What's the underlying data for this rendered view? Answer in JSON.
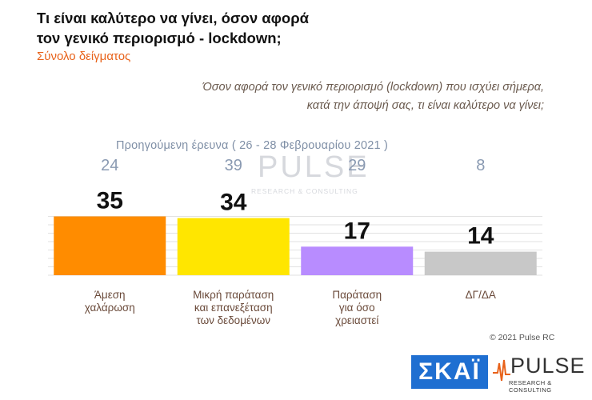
{
  "title_line1": "Τι είναι καλύτερο να γίνει, όσον αφορά",
  "title_line2": "τον γενικό περιορισμό - lockdown;",
  "subtitle": "Σύνολο δείγματος",
  "question_line1": "Όσον αφορά τον γενικό περιορισμό (lockdown) που ισχύει σήμερα,",
  "question_line2": "κατά την άποψή σας, τι είναι καλύτερο να γίνει;",
  "copyright": "© 2021 Pulse RC",
  "logos": {
    "skai": "ΣΚΑΪ",
    "pulse": "PULSE",
    "pulse_sub": "RESEARCH & CONSULTING"
  },
  "chart_data": {
    "type": "bar",
    "categories": [
      [
        "Άμεση",
        "χαλάρωση"
      ],
      [
        "Μικρή παράταση",
        "και επανεξέταση",
        "των δεδομένων"
      ],
      [
        "Παράταση",
        "για όσο",
        "χρειαστεί"
      ],
      [
        "ΔΓ/ΔΑ"
      ]
    ],
    "values": [
      35,
      34,
      17,
      14
    ],
    "previous_label": "Προηγούμενη έρευνα ( 26 - 28 Φεβρουαρίου 2021 )",
    "previous_values": [
      24,
      39,
      29,
      8
    ],
    "colors": [
      "#ff8c00",
      "#ffe600",
      "#b88cff",
      "#c8c8c8"
    ],
    "ylim": [
      0,
      40
    ],
    "grid": true
  }
}
